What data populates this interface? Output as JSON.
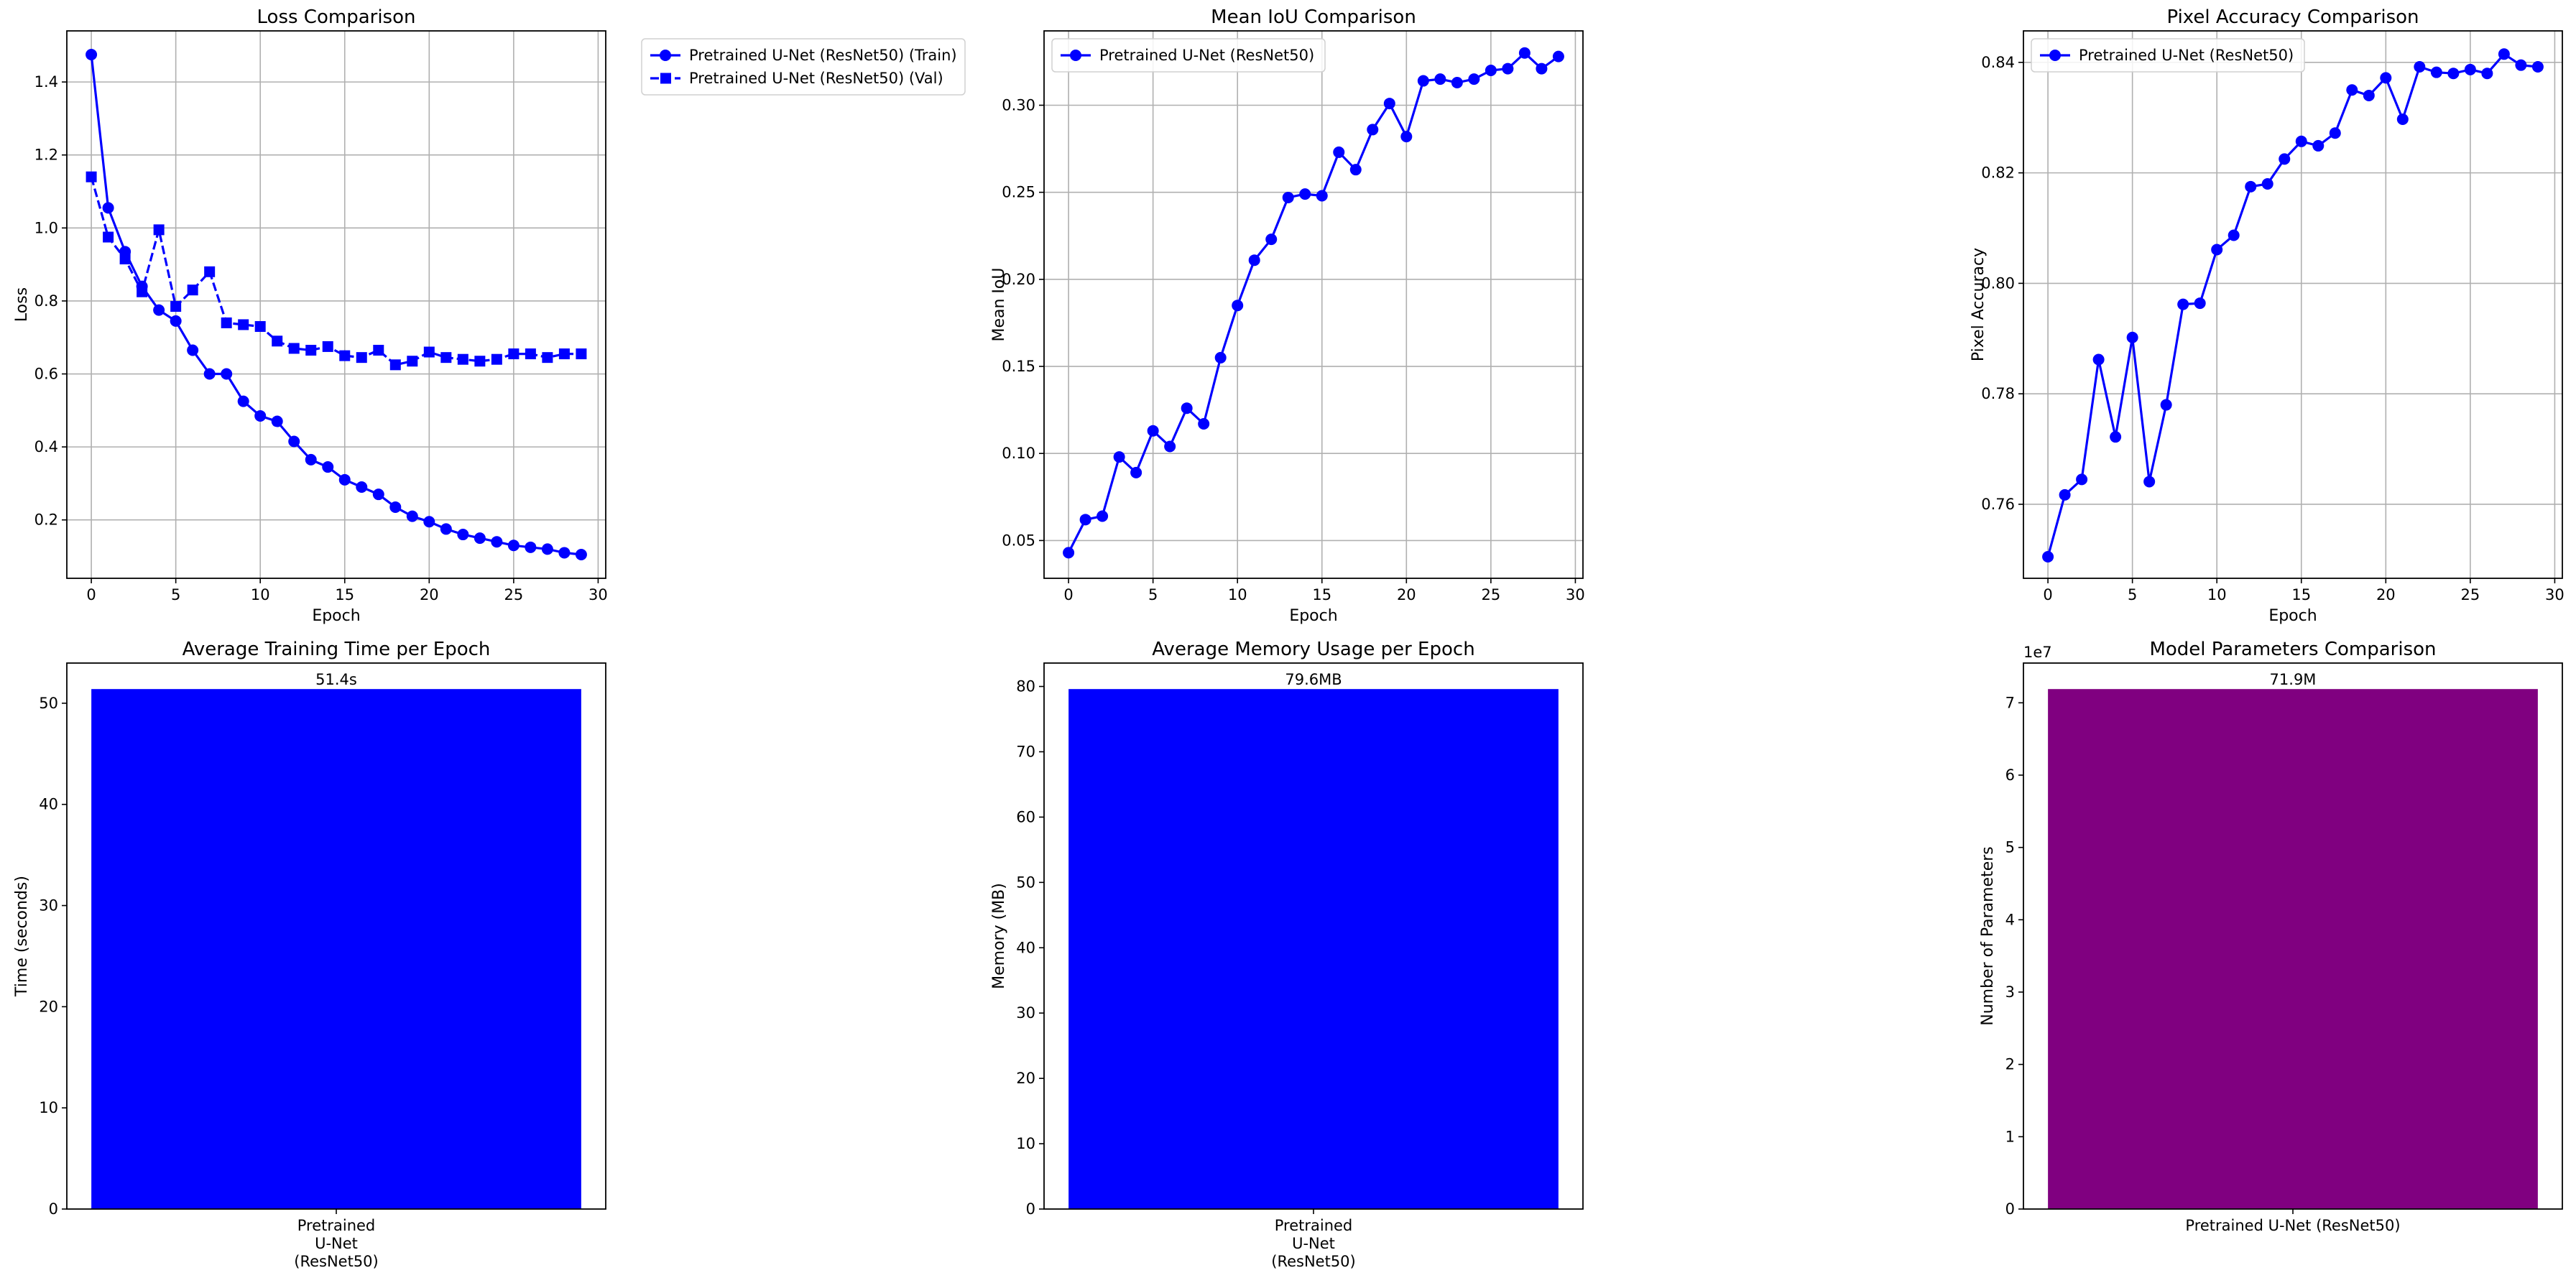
{
  "chart_data": [
    {
      "id": "loss",
      "type": "line",
      "title": "Loss Comparison",
      "xlabel": "Epoch",
      "ylabel": "Loss",
      "xlim": [
        -1.45,
        30.45
      ],
      "ylim": [
        0.04,
        1.54
      ],
      "xticks": [
        0,
        5,
        10,
        15,
        20,
        25,
        30
      ],
      "yticks": [
        0.2,
        0.4,
        0.6,
        0.8,
        1.0,
        1.2,
        1.4
      ],
      "ytick_decimals": 1,
      "grid": true,
      "legend_placement": "outside-upper-right",
      "x": [
        0,
        1,
        2,
        3,
        4,
        5,
        6,
        7,
        8,
        9,
        10,
        11,
        12,
        13,
        14,
        15,
        16,
        17,
        18,
        19,
        20,
        21,
        22,
        23,
        24,
        25,
        26,
        27,
        28,
        29
      ],
      "series": [
        {
          "name": "Pretrained U-Net (ResNet50) (Train)",
          "color": "#0000ff",
          "marker": "circle",
          "linestyle": "solid",
          "values": [
            1.475,
            1.055,
            0.935,
            0.84,
            0.775,
            0.745,
            0.665,
            0.6,
            0.6,
            0.525,
            0.485,
            0.47,
            0.415,
            0.365,
            0.345,
            0.31,
            0.29,
            0.27,
            0.235,
            0.21,
            0.195,
            0.175,
            0.16,
            0.15,
            0.14,
            0.13,
            0.125,
            0.12,
            0.11,
            0.105
          ]
        },
        {
          "name": "Pretrained U-Net (ResNet50) (Val)",
          "color": "#0000ff",
          "marker": "square",
          "linestyle": "dashed",
          "values": [
            1.14,
            0.975,
            0.915,
            0.825,
            0.995,
            0.785,
            0.83,
            0.88,
            0.74,
            0.735,
            0.73,
            0.69,
            0.67,
            0.665,
            0.675,
            0.65,
            0.645,
            0.665,
            0.625,
            0.635,
            0.66,
            0.645,
            0.64,
            0.635,
            0.64,
            0.655,
            0.655,
            0.645,
            0.655,
            0.655
          ]
        }
      ]
    },
    {
      "id": "iou",
      "type": "line",
      "title": "Mean IoU Comparison",
      "xlabel": "Epoch",
      "ylabel": "Mean IoU",
      "xlim": [
        -1.45,
        30.45
      ],
      "ylim": [
        0.0283,
        0.3427
      ],
      "xticks": [
        0,
        5,
        10,
        15,
        20,
        25,
        30
      ],
      "yticks": [
        0.05,
        0.1,
        0.15,
        0.2,
        0.25,
        0.3
      ],
      "ytick_decimals": 2,
      "grid": true,
      "legend_placement": "upper-left",
      "x": [
        0,
        1,
        2,
        3,
        4,
        5,
        6,
        7,
        8,
        9,
        10,
        11,
        12,
        13,
        14,
        15,
        16,
        17,
        18,
        19,
        20,
        21,
        22,
        23,
        24,
        25,
        26,
        27,
        28,
        29
      ],
      "series": [
        {
          "name": "Pretrained U-Net (ResNet50)",
          "color": "#0000ff",
          "marker": "circle",
          "linestyle": "solid",
          "values": [
            0.043,
            0.062,
            0.064,
            0.098,
            0.089,
            0.113,
            0.104,
            0.126,
            0.117,
            0.155,
            0.185,
            0.211,
            0.223,
            0.247,
            0.249,
            0.248,
            0.273,
            0.263,
            0.286,
            0.301,
            0.282,
            0.314,
            0.315,
            0.313,
            0.315,
            0.32,
            0.321,
            0.33,
            0.321,
            0.328
          ]
        }
      ]
    },
    {
      "id": "pixacc",
      "type": "line",
      "title": "Pixel Accuracy Comparison",
      "xlabel": "Epoch",
      "ylabel": "Pixel Accuracy",
      "xlim": [
        -1.45,
        30.45
      ],
      "ylim": [
        0.7466,
        0.8457
      ],
      "xticks": [
        0,
        5,
        10,
        15,
        20,
        25,
        30
      ],
      "yticks": [
        0.76,
        0.78,
        0.8,
        0.82,
        0.84
      ],
      "ytick_decimals": 2,
      "grid": true,
      "legend_placement": "upper-left",
      "x": [
        0,
        1,
        2,
        3,
        4,
        5,
        6,
        7,
        8,
        9,
        10,
        11,
        12,
        13,
        14,
        15,
        16,
        17,
        18,
        19,
        20,
        21,
        22,
        23,
        24,
        25,
        26,
        27,
        28,
        29
      ],
      "series": [
        {
          "name": "Pretrained U-Net (ResNet50)",
          "color": "#0000ff",
          "marker": "circle",
          "linestyle": "solid",
          "values": [
            0.7505,
            0.7617,
            0.7645,
            0.7862,
            0.7722,
            0.7902,
            0.7641,
            0.778,
            0.7962,
            0.7964,
            0.8061,
            0.8087,
            0.8175,
            0.818,
            0.8225,
            0.8257,
            0.8249,
            0.8272,
            0.835,
            0.834,
            0.8372,
            0.8297,
            0.8392,
            0.8382,
            0.838,
            0.8387,
            0.838,
            0.8415,
            0.8395,
            0.8392
          ]
        }
      ]
    },
    {
      "id": "time",
      "type": "bar",
      "title": "Average Training Time per Epoch",
      "xlabel": "",
      "ylabel": "Time (seconds)",
      "ylim": [
        0,
        53.97
      ],
      "yticks": [
        0,
        10,
        20,
        30,
        40,
        50
      ],
      "ytick_decimals": 0,
      "grid": false,
      "categories": [
        [
          "Pretrained",
          "U-Net",
          "(ResNet50)"
        ]
      ],
      "values": [
        51.4
      ],
      "value_labels": [
        "51.4s"
      ],
      "bar_color": "#0000ff"
    },
    {
      "id": "memory",
      "type": "bar",
      "title": "Average Memory Usage per Epoch",
      "xlabel": "",
      "ylabel": "Memory (MB)",
      "ylim": [
        0,
        83.58
      ],
      "yticks": [
        0,
        10,
        20,
        30,
        40,
        50,
        60,
        70,
        80
      ],
      "ytick_decimals": 0,
      "grid": false,
      "categories": [
        [
          "Pretrained",
          "U-Net",
          "(ResNet50)"
        ]
      ],
      "values": [
        79.6
      ],
      "value_labels": [
        "79.6MB"
      ],
      "bar_color": "#0000ff"
    },
    {
      "id": "params",
      "type": "bar",
      "title": "Model Parameters Comparison",
      "xlabel": "",
      "ylabel": "Number of Parameters",
      "ylim": [
        0,
        7.5495
      ],
      "yticks": [
        0,
        1,
        2,
        3,
        4,
        5,
        6,
        7
      ],
      "ytick_decimals": 0,
      "offset_text": "1e7",
      "grid": false,
      "categories": [
        [
          "Pretrained U-Net (ResNet50)"
        ]
      ],
      "values": [
        7.19
      ],
      "value_labels": [
        "71.9M"
      ],
      "bar_color": "#800080"
    }
  ]
}
